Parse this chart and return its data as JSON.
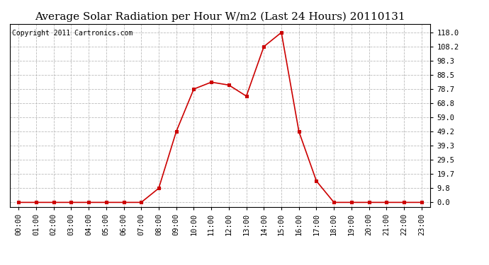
{
  "title": "Average Solar Radiation per Hour W/m2 (Last 24 Hours) 20110131",
  "copyright_text": "Copyright 2011 Cartronics.com",
  "hours": [
    0,
    1,
    2,
    3,
    4,
    5,
    6,
    7,
    8,
    9,
    10,
    11,
    12,
    13,
    14,
    15,
    16,
    17,
    18,
    19,
    20,
    21,
    22,
    23
  ],
  "values": [
    0.0,
    0.0,
    0.0,
    0.0,
    0.0,
    0.0,
    0.0,
    0.0,
    9.8,
    49.2,
    78.7,
    83.5,
    81.5,
    73.8,
    108.2,
    118.0,
    49.2,
    14.8,
    0.0,
    0.0,
    0.0,
    0.0,
    0.0,
    0.0
  ],
  "yticks": [
    0.0,
    9.8,
    19.7,
    29.5,
    39.3,
    49.2,
    59.0,
    68.8,
    78.7,
    88.5,
    98.3,
    108.2,
    118.0
  ],
  "line_color": "#CC0000",
  "marker_color": "#CC0000",
  "bg_color": "#FFFFFF",
  "plot_bg_color": "#FFFFFF",
  "grid_color": "#BBBBBB",
  "title_fontsize": 11,
  "copyright_fontsize": 7,
  "tick_fontsize": 7.5,
  "ylim": [
    -3,
    124
  ],
  "xlim": [
    -0.5,
    23.5
  ]
}
